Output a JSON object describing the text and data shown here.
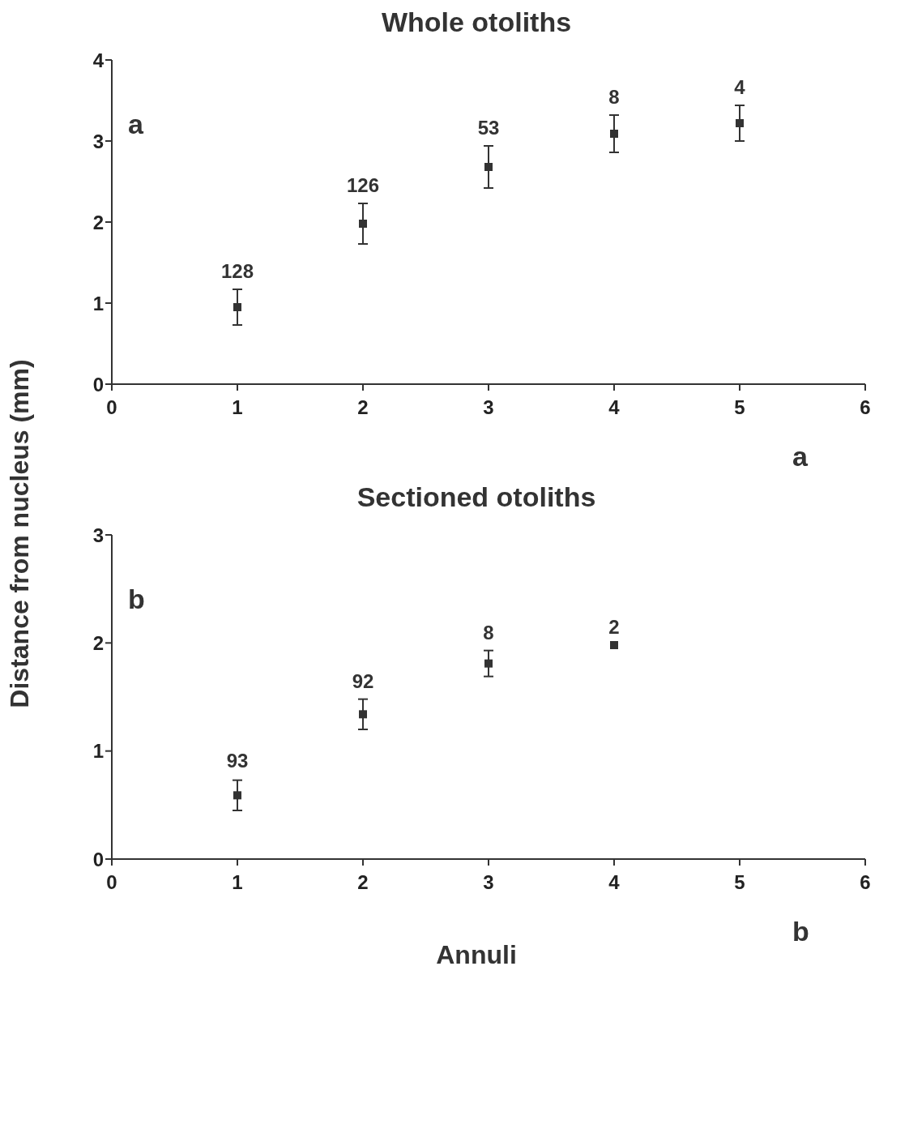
{
  "chart_data": [
    {
      "type": "scatter",
      "title": "Whole otoliths",
      "ylabel": "Distance from nucleus (mm)",
      "x": [
        1,
        2,
        3,
        4,
        5
      ],
      "marker": "square",
      "grid": false,
      "series": [
        {
          "color": "#333333",
          "values": [
            0.95,
            1.98,
            2.68,
            3.09,
            3.22
          ],
          "errors": [
            0.22,
            0.25,
            0.26,
            0.23,
            0.22
          ]
        }
      ],
      "xlim": [
        0,
        6
      ],
      "xticks": [
        0,
        1,
        2,
        3,
        4,
        5,
        6
      ],
      "ylim": [
        0,
        4
      ],
      "yticks": [
        0,
        1,
        2,
        3,
        4
      ],
      "annotations": [
        "a",
        "a",
        {
          "text": "128",
          "x": 1,
          "y": 1.17
        },
        {
          "text": "126",
          "x": 2,
          "y": 2.23
        },
        {
          "text": "53",
          "x": 3,
          "y": 2.94
        },
        {
          "text": "8",
          "x": 4,
          "y": 3.32
        },
        {
          "text": "4",
          "x": 5,
          "y": 3.44
        }
      ]
    },
    {
      "type": "scatter",
      "title": "Sectioned otoliths",
      "xlabel": "Annuli",
      "x": [
        1,
        2,
        3,
        4
      ],
      "marker": "square",
      "grid": false,
      "series": [
        {
          "color": "#333333",
          "values": [
            0.59,
            1.34,
            1.81,
            1.98
          ],
          "errors": [
            0.14,
            0.14,
            0.12,
            null
          ]
        }
      ],
      "xlim": [
        0,
        6
      ],
      "xticks": [
        0,
        1,
        2,
        3,
        4,
        5,
        6
      ],
      "ylim": [
        0,
        3
      ],
      "yticks": [
        0,
        1,
        2,
        3
      ],
      "annotations": [
        "b",
        "b",
        {
          "text": "93",
          "x": 1,
          "y": 0.74
        },
        {
          "text": "92",
          "x": 2,
          "y": 1.48
        },
        {
          "text": "8",
          "x": 3,
          "y": 1.93
        },
        {
          "text": "2",
          "x": 4,
          "y": 1.98
        }
      ]
    }
  ]
}
